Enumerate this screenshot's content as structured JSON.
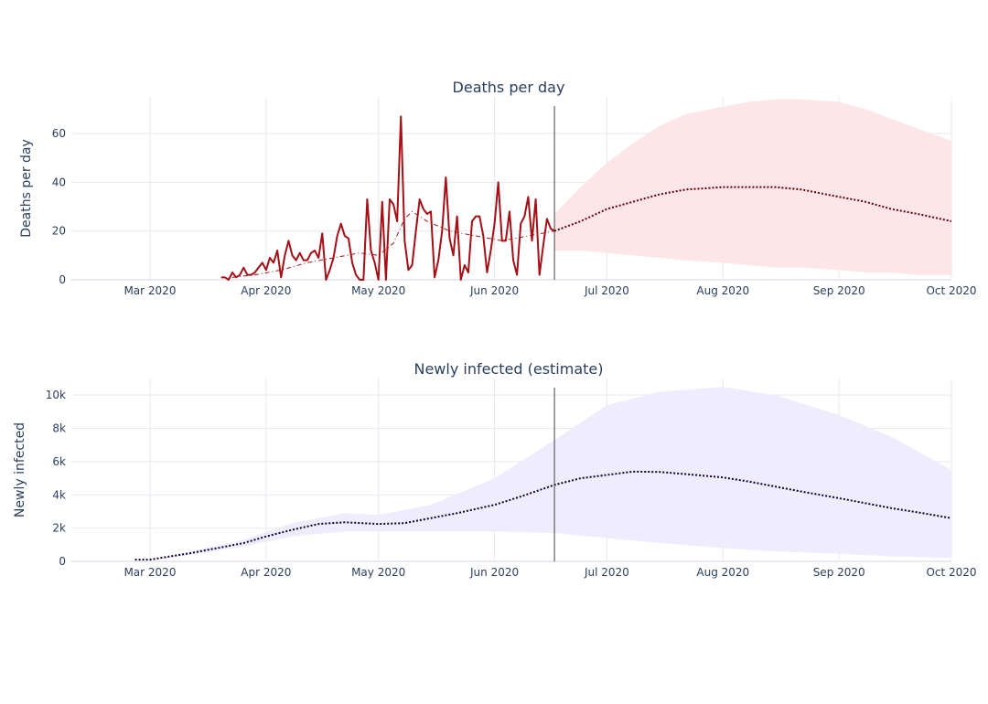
{
  "chart_data": [
    {
      "type": "line",
      "title": "Deaths per day",
      "ylabel": "Deaths per day",
      "xlabel": "",
      "xlim": [
        "2020-02-09",
        "2020-10-01"
      ],
      "ylim": [
        0,
        75
      ],
      "x_ticks": [
        "2020-03-01",
        "2020-04-01",
        "2020-05-01",
        "2020-06-01",
        "2020-07-01",
        "2020-08-01",
        "2020-09-01",
        "2020-10-01"
      ],
      "x_tick_labels": [
        "Mar 2020",
        "Apr 2020",
        "May 2020",
        "Jun 2020",
        "Jul 2020",
        "Aug 2020",
        "Sep 2020",
        "Oct 2020"
      ],
      "y_ticks": [
        0,
        20,
        40,
        60
      ],
      "y_tick_labels": [
        "0",
        "20",
        "40",
        "60"
      ],
      "grid": true,
      "vline": "2020-06-17",
      "colors": {
        "observed": "#a50f15",
        "smoothed": "#a50f15",
        "forecast": "#67000d",
        "band": "#fde6e8"
      },
      "observed": {
        "x": [
          "2020-03-20",
          "2020-03-21",
          "2020-03-22",
          "2020-03-23",
          "2020-03-24",
          "2020-03-25",
          "2020-03-26",
          "2020-03-27",
          "2020-03-28",
          "2020-03-29",
          "2020-03-30",
          "2020-03-31",
          "2020-04-01",
          "2020-04-02",
          "2020-04-03",
          "2020-04-04",
          "2020-04-05",
          "2020-04-06",
          "2020-04-07",
          "2020-04-08",
          "2020-04-09",
          "2020-04-10",
          "2020-04-11",
          "2020-04-12",
          "2020-04-13",
          "2020-04-14",
          "2020-04-15",
          "2020-04-16",
          "2020-04-17",
          "2020-04-18",
          "2020-04-19",
          "2020-04-20",
          "2020-04-21",
          "2020-04-22",
          "2020-04-23",
          "2020-04-24",
          "2020-04-25",
          "2020-04-26",
          "2020-04-27",
          "2020-04-28",
          "2020-04-29",
          "2020-04-30",
          "2020-05-01",
          "2020-05-02",
          "2020-05-03",
          "2020-05-04",
          "2020-05-05",
          "2020-05-06",
          "2020-05-07",
          "2020-05-08",
          "2020-05-09",
          "2020-05-10",
          "2020-05-11",
          "2020-05-12",
          "2020-05-13",
          "2020-05-14",
          "2020-05-15",
          "2020-05-16",
          "2020-05-17",
          "2020-05-18",
          "2020-05-19",
          "2020-05-20",
          "2020-05-21",
          "2020-05-22",
          "2020-05-23",
          "2020-05-24",
          "2020-05-25",
          "2020-05-26",
          "2020-05-27",
          "2020-05-28",
          "2020-05-29",
          "2020-05-30",
          "2020-05-31",
          "2020-06-01",
          "2020-06-02",
          "2020-06-03",
          "2020-06-04",
          "2020-06-05",
          "2020-06-06",
          "2020-06-07",
          "2020-06-08",
          "2020-06-09",
          "2020-06-10",
          "2020-06-11",
          "2020-06-12",
          "2020-06-13",
          "2020-06-14",
          "2020-06-15",
          "2020-06-16",
          "2020-06-17"
        ],
        "y": [
          1,
          1,
          0,
          3,
          1,
          2,
          5,
          2,
          2,
          3,
          5,
          7,
          4,
          9,
          7,
          12,
          1,
          10,
          16,
          10,
          8,
          11,
          8,
          8,
          11,
          12,
          9,
          19,
          0,
          4,
          9,
          18,
          23,
          18,
          17,
          7,
          2,
          0,
          0,
          33,
          12,
          7,
          0,
          32,
          0,
          33,
          31,
          24,
          67,
          16,
          4,
          6,
          20,
          33,
          29,
          27,
          28,
          1,
          8,
          20,
          42,
          17,
          10,
          26,
          0,
          6,
          3,
          24,
          26,
          26,
          18,
          3,
          12,
          23,
          40,
          16,
          16,
          28,
          8,
          2,
          23,
          26,
          34,
          16,
          33,
          2,
          14,
          25,
          21,
          20
        ]
      },
      "smoothed": {
        "x": [
          "2020-03-23",
          "2020-03-29",
          "2020-04-05",
          "2020-04-12",
          "2020-04-19",
          "2020-04-26",
          "2020-05-01",
          "2020-05-05",
          "2020-05-08",
          "2020-05-10",
          "2020-05-14",
          "2020-05-20",
          "2020-05-27",
          "2020-06-03",
          "2020-06-10",
          "2020-06-17"
        ],
        "y": [
          1,
          2,
          4,
          7,
          9,
          11,
          10,
          15,
          25,
          28,
          24,
          20,
          18,
          16,
          18,
          20
        ]
      },
      "forecast": {
        "x": [
          "2020-06-17",
          "2020-06-24",
          "2020-07-01",
          "2020-07-08",
          "2020-07-15",
          "2020-07-22",
          "2020-08-01",
          "2020-08-08",
          "2020-08-15",
          "2020-08-22",
          "2020-09-01",
          "2020-09-08",
          "2020-09-15",
          "2020-09-22",
          "2020-10-01"
        ],
        "y": [
          20,
          24,
          29,
          32,
          35,
          37,
          38,
          38,
          38,
          37,
          34,
          32,
          29,
          27,
          24
        ]
      },
      "band": {
        "x": [
          "2020-06-17",
          "2020-06-24",
          "2020-07-01",
          "2020-07-08",
          "2020-07-15",
          "2020-07-22",
          "2020-08-01",
          "2020-08-08",
          "2020-08-15",
          "2020-08-22",
          "2020-09-01",
          "2020-09-08",
          "2020-09-15",
          "2020-09-22",
          "2020-10-01"
        ],
        "lower": [
          12,
          12,
          11,
          10,
          9,
          8,
          7,
          6,
          5,
          5,
          4,
          3,
          3,
          2,
          2
        ],
        "upper": [
          27,
          38,
          48,
          56,
          63,
          68,
          71,
          73,
          74,
          74,
          73,
          70,
          66,
          62,
          57
        ]
      }
    },
    {
      "type": "line",
      "title": "Newly infected (estimate)",
      "ylabel": "Newly infected",
      "xlabel": "",
      "xlim": [
        "2020-02-09",
        "2020-10-01"
      ],
      "ylim": [
        0,
        11000
      ],
      "x_ticks": [
        "2020-03-01",
        "2020-04-01",
        "2020-05-01",
        "2020-06-01",
        "2020-07-01",
        "2020-08-01",
        "2020-09-01",
        "2020-10-01"
      ],
      "x_tick_labels": [
        "Mar 2020",
        "Apr 2020",
        "May 2020",
        "Jun 2020",
        "Jul 2020",
        "Aug 2020",
        "Sep 2020",
        "Oct 2020"
      ],
      "y_ticks": [
        0,
        2000,
        4000,
        6000,
        8000,
        10000
      ],
      "y_tick_labels": [
        "0",
        "2k",
        "4k",
        "6k",
        "8k",
        "10k"
      ],
      "grid": true,
      "vline": "2020-06-17",
      "colors": {
        "forecast": "#160033",
        "band": "#efedfd"
      },
      "forecast": {
        "x": [
          "2020-02-26",
          "2020-03-01",
          "2020-03-05",
          "2020-03-12",
          "2020-03-19",
          "2020-03-26",
          "2020-04-01",
          "2020-04-08",
          "2020-04-15",
          "2020-04-22",
          "2020-05-01",
          "2020-05-08",
          "2020-05-15",
          "2020-05-22",
          "2020-06-01",
          "2020-06-08",
          "2020-06-17",
          "2020-06-24",
          "2020-07-01",
          "2020-07-08",
          "2020-07-15",
          "2020-07-22",
          "2020-08-01",
          "2020-08-08",
          "2020-08-15",
          "2020-08-22",
          "2020-09-01",
          "2020-09-08",
          "2020-09-15",
          "2020-09-22",
          "2020-10-01"
        ],
        "y": [
          100,
          100,
          250,
          500,
          800,
          1100,
          1500,
          1900,
          2250,
          2350,
          2250,
          2300,
          2600,
          2900,
          3400,
          3900,
          4600,
          5000,
          5200,
          5400,
          5380,
          5250,
          5050,
          4800,
          4500,
          4200,
          3800,
          3500,
          3200,
          2950,
          2600
        ]
      },
      "band": {
        "x": [
          "2020-03-01",
          "2020-03-12",
          "2020-03-26",
          "2020-04-08",
          "2020-04-22",
          "2020-05-01",
          "2020-05-15",
          "2020-06-01",
          "2020-06-17",
          "2020-07-01",
          "2020-07-15",
          "2020-08-01",
          "2020-08-15",
          "2020-09-01",
          "2020-09-15",
          "2020-10-01"
        ],
        "lower": [
          100,
          400,
          900,
          1500,
          1800,
          1800,
          1800,
          1800,
          1700,
          1400,
          1100,
          800,
          600,
          450,
          300,
          200
        ],
        "upper": [
          100,
          600,
          1300,
          2300,
          2900,
          2800,
          3400,
          5000,
          7300,
          9400,
          10200,
          10500,
          10000,
          8800,
          7500,
          5500
        ]
      }
    }
  ]
}
